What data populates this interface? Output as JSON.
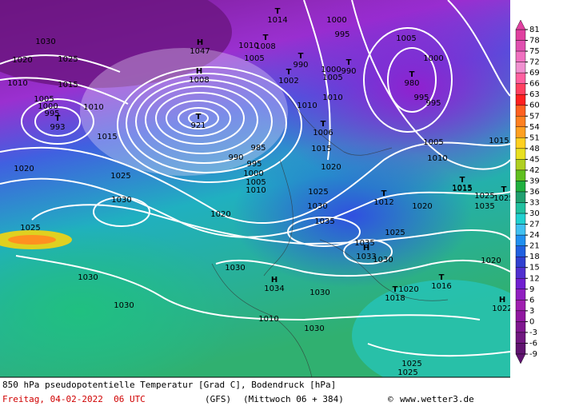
{
  "map": {
    "title_line": "850 hPa pseudopotentielle Temperatur [Grad C], Bodendruck [hPa]",
    "date": "Freitag, 04-02-2022  06 UTC",
    "model": "(GFS)",
    "forecast": "(Mittwoch 06 + 384)",
    "credit": "www.wetter3.de",
    "copyright": "©",
    "colorbar": {
      "ticks": [
        81,
        78,
        75,
        72,
        69,
        66,
        63,
        60,
        57,
        54,
        51,
        48,
        45,
        42,
        39,
        36,
        33,
        30,
        27,
        24,
        21,
        18,
        15,
        12,
        9,
        6,
        3,
        0,
        -3,
        -6,
        -9
      ],
      "colors": [
        "#e040a0",
        "#e050b0",
        "#f070c0",
        "#f090d0",
        "#ff60a0",
        "#ff4060",
        "#ff2020",
        "#ff6020",
        "#ff8020",
        "#ffa020",
        "#ffd020",
        "#e8e020",
        "#b0d020",
        "#60c020",
        "#20b040",
        "#20a070",
        "#20c0a0",
        "#20d0d0",
        "#40c0f0",
        "#2090f0",
        "#2060e0",
        "#3040d0",
        "#5030d0",
        "#7020d0",
        "#9020c0",
        "#a020b0",
        "#9018a0",
        "#801890",
        "#701880",
        "#601470"
      ]
    },
    "pressure_labels": [
      1030,
      1020,
      1025,
      1010,
      1015,
      1005,
      1000,
      995,
      1010,
      1015,
      1020,
      1025,
      1030,
      1020,
      1025,
      985,
      990,
      995,
      1000,
      1005,
      1010,
      1025,
      1030,
      1035,
      1010,
      1015,
      1020,
      1010,
      1000,
      995,
      1005,
      1000,
      995,
      995,
      1005,
      1010,
      1015,
      1020,
      1025,
      1030,
      1035,
      1025,
      1020,
      1015,
      1030,
      1030,
      1030,
      1030,
      1030,
      1025,
      1025,
      1005,
      1010,
      1000,
      1005,
      1020,
      1035,
      1010
    ],
    "centers": [
      {
        "symbol": "T",
        "pressure": 993
      },
      {
        "symbol": "T",
        "pressure": 921
      },
      {
        "symbol": "H",
        "pressure": 1034
      },
      {
        "symbol": "T",
        "pressure": 1002
      },
      {
        "symbol": "T",
        "pressure": 990
      },
      {
        "symbol": "T",
        "pressure": 990
      },
      {
        "symbol": "T",
        "pressure": 980
      },
      {
        "symbol": "T",
        "pressure": 1012
      },
      {
        "symbol": "T",
        "pressure": 1015
      },
      {
        "symbol": "T",
        "pressure": 1016
      },
      {
        "symbol": "T",
        "pressure": 1018
      },
      {
        "symbol": "H",
        "pressure": 1033
      },
      {
        "symbol": "T",
        "pressure": 1006
      },
      {
        "symbol": "T",
        "pressure": 1014
      },
      {
        "symbol": "H",
        "pressure": 1047
      },
      {
        "symbol": "H",
        "pressure": 1008
      },
      {
        "symbol": "T",
        "pressure": 1008
      },
      {
        "symbol": "H",
        "pressure": 1022
      },
      {
        "symbol": "T",
        "pressure": 1025
      }
    ]
  }
}
